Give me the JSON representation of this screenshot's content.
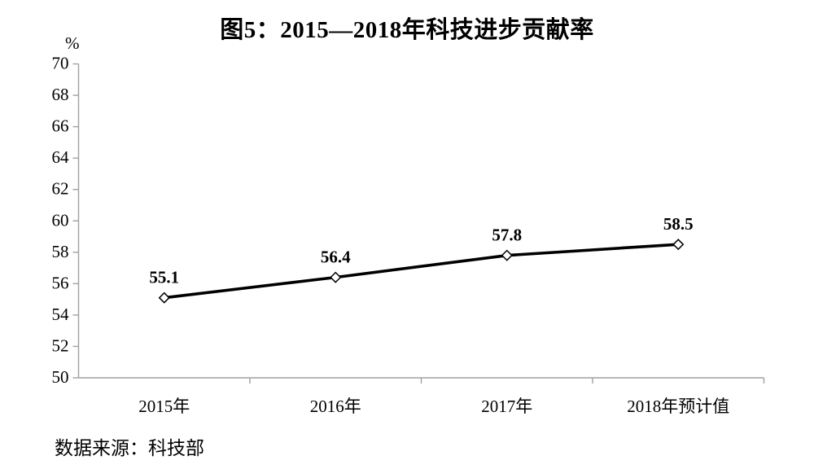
{
  "title": "图5：2015—2018年科技进步贡献率",
  "y_axis_unit": "%",
  "source_note": "数据来源：科技部",
  "chart_data": {
    "type": "line",
    "title": "图5：2015—2018年科技进步贡献率",
    "categories": [
      "2015年",
      "2016年",
      "2017年",
      "2018年预计值"
    ],
    "values": [
      55.1,
      56.4,
      57.8,
      58.5
    ],
    "data_labels": [
      "55.1",
      "56.4",
      "57.8",
      "58.5"
    ],
    "xlabel": "",
    "ylabel": "%",
    "ylim": [
      50,
      70
    ],
    "yticks": [
      50,
      52,
      54,
      56,
      58,
      60,
      62,
      64,
      66,
      68,
      70
    ],
    "grid": false,
    "legend": "none",
    "line_color": "#000000",
    "marker_shape": "diamond-open",
    "marker_fill": "#ffffff",
    "marker_stroke": "#000000",
    "axis_color": "#a0a0a0",
    "text_color": "#000000"
  }
}
